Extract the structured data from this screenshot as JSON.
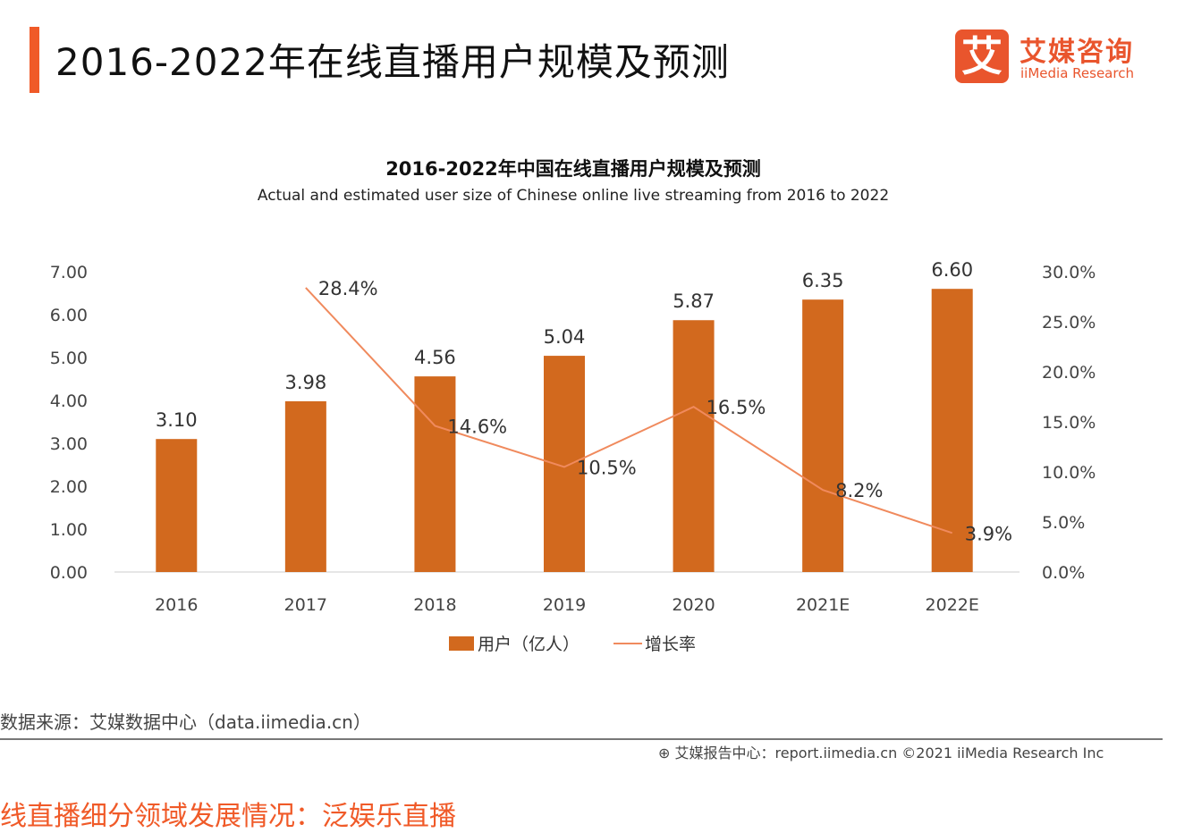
{
  "header": {
    "title": "2016-2022年在线直播用户规模及预测"
  },
  "logo": {
    "mark": "艾",
    "cn": "艾媒咨询",
    "en": "iiMedia Research"
  },
  "colors": {
    "accent": "#f05a28",
    "bar": "#d2691e",
    "line": "#f08a5d"
  },
  "chart_data": {
    "type": "bar+line",
    "title": "2016-2022年中国在线直播用户规模及预测",
    "subtitle": "Actual and estimated user size of Chinese online live streaming from 2016 to 2022",
    "categories": [
      "2016",
      "2017",
      "2018",
      "2019",
      "2020",
      "2021E",
      "2022E"
    ],
    "series": [
      {
        "name": "用户（亿人）",
        "type": "bar",
        "axis": "left",
        "values": [
          3.1,
          3.98,
          4.56,
          5.04,
          5.87,
          6.35,
          6.6
        ],
        "labels": [
          "3.10",
          "3.98",
          "4.56",
          "5.04",
          "5.87",
          "6.35",
          "6.60"
        ]
      },
      {
        "name": "增长率",
        "type": "line",
        "axis": "right",
        "values": [
          null,
          28.4,
          14.6,
          10.5,
          16.5,
          8.2,
          3.9
        ],
        "labels": [
          "",
          "28.4%",
          "14.6%",
          "10.5%",
          "16.5%",
          "8.2%",
          "3.9%"
        ]
      }
    ],
    "left_axis": {
      "range": [
        0,
        7
      ],
      "ticks": [
        "0.00",
        "1.00",
        "2.00",
        "3.00",
        "4.00",
        "5.00",
        "6.00",
        "7.00"
      ]
    },
    "right_axis": {
      "range": [
        0,
        30
      ],
      "ticks": [
        "0.0%",
        "5.0%",
        "10.0%",
        "15.0%",
        "20.0%",
        "25.0%",
        "30.0%"
      ]
    },
    "grid": false,
    "legend": "bottom"
  },
  "source": "数据来源：艾媒数据中心（data.iimedia.cn）",
  "footer": "艾媒报告中心：report.iimedia.cn   ©2021  iiMedia Research Inc",
  "next_heading": "线直播细分领域发展情况：泛娱乐直播"
}
